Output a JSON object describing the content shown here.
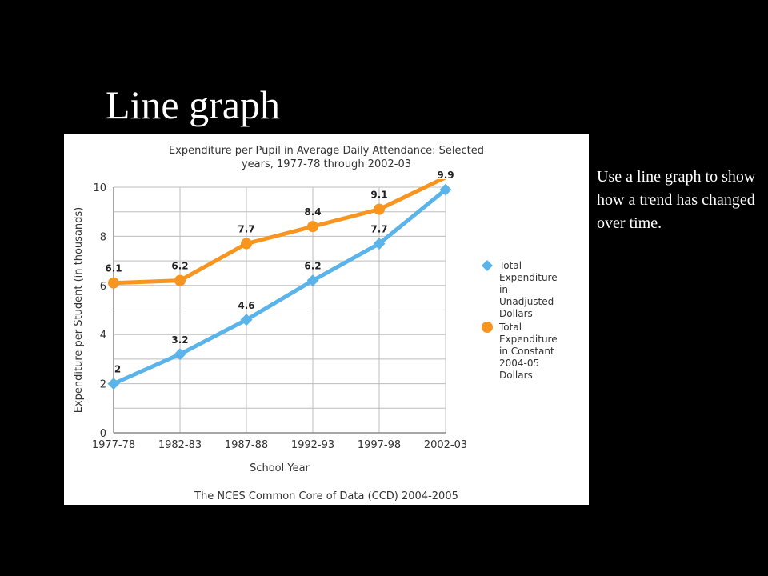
{
  "slide": {
    "title": "Line graph",
    "note": "Use a line graph to show how a trend has changed over time."
  },
  "chart_data": {
    "type": "line",
    "title_lines": [
      "Expenditure per Pupil in Average Daily Attendance: Selected",
      "years, 1977-78 through 2002-03"
    ],
    "xlabel": "School Year",
    "ylabel": "Expenditure per Student (in thousands)",
    "source": "The NCES Common Core of Data (CCD) 2004-2005",
    "categories": [
      "1977-78",
      "1982-83",
      "1987-88",
      "1992-93",
      "1997-98",
      "2002-03"
    ],
    "ylim": [
      0,
      10
    ],
    "yticks": [
      0,
      2,
      4,
      6,
      8,
      10
    ],
    "grid": true,
    "legend_position": "right",
    "series": [
      {
        "name": "Total Expenditure in Unadjusted Dollars",
        "legend_lines": [
          "Total",
          "Expenditure",
          "in",
          "Unadjusted",
          "Dollars"
        ],
        "marker": "diamond",
        "color": "#5ab4ea",
        "values": [
          2,
          3.2,
          4.6,
          6.2,
          7.7,
          9.9
        ],
        "labels": [
          "2",
          "3.2",
          "4.6",
          "6.2",
          "7.7",
          "9.9"
        ]
      },
      {
        "name": "Total Expenditure in Constant 2004-05 Dollars",
        "legend_lines": [
          "Total",
          "Expenditure",
          "in Constant",
          "2004-05",
          "Dollars"
        ],
        "marker": "circle",
        "color": "#f7951e",
        "values": [
          6.1,
          6.2,
          7.7,
          8.4,
          9.1,
          10.4
        ],
        "labels": [
          "6.1",
          "6.2",
          "7.7",
          "8.4",
          "9.1",
          ""
        ]
      }
    ]
  }
}
